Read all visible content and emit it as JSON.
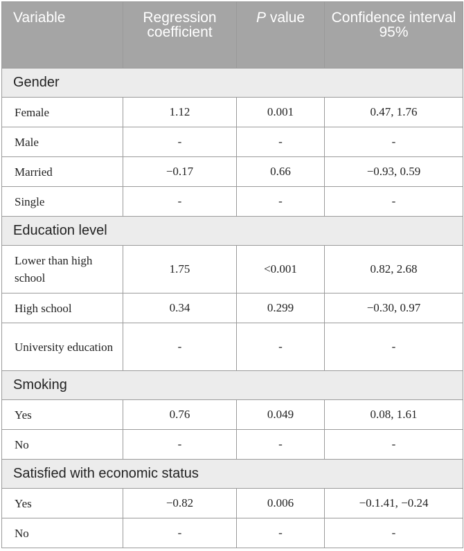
{
  "table": {
    "headers": {
      "variable": "Variable",
      "coefficient": "Regression coefficient",
      "p_italic": "P",
      "p_rest": " value",
      "ci": "Confidence interval 95%"
    },
    "sections": [
      {
        "title": "Gender",
        "rows": [
          {
            "label": "Female",
            "coef": "1.12",
            "p": "0.001",
            "ci": "0.47, 1.76"
          },
          {
            "label": "Male",
            "coef": "-",
            "p": "-",
            "ci": "-"
          },
          {
            "label": "Married",
            "coef": "−0.17",
            "p": "0.66",
            "ci": "−0.93, 0.59"
          },
          {
            "label": "Single",
            "coef": "-",
            "p": "-",
            "ci": "-"
          }
        ]
      },
      {
        "title": "Education level",
        "rows": [
          {
            "label": "Lower than high school",
            "coef": "1.75",
            "p": "<0.001",
            "ci": "0.82, 2.68"
          },
          {
            "label": "High school",
            "coef": "0.34",
            "p": "0.299",
            "ci": "−0.30, 0.97"
          },
          {
            "label": "University education",
            "coef": "-",
            "p": "-",
            "ci": "-"
          }
        ]
      },
      {
        "title": "Smoking",
        "rows": [
          {
            "label": "Yes",
            "coef": "0.76",
            "p": "0.049",
            "ci": "0.08, 1.61"
          },
          {
            "label": "No",
            "coef": "-",
            "p": "-",
            "ci": "-"
          }
        ]
      },
      {
        "title": "Satisfied with economic status",
        "rows": [
          {
            "label": "Yes",
            "coef": "−0.82",
            "p": "0.006",
            "ci": "−0.1.41, −0.24"
          },
          {
            "label": "No",
            "coef": "-",
            "p": "-",
            "ci": "-"
          }
        ]
      }
    ]
  }
}
